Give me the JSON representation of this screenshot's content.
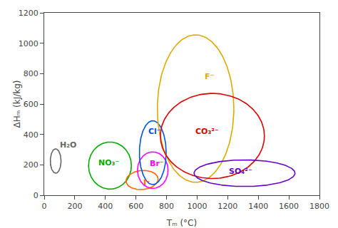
{
  "chart_data": {
    "type": "ellipse",
    "xlabel": "Tₘ (°C)",
    "ylabel": "ΔHₘ (kJ/kg)",
    "xlim": [
      0,
      1800
    ],
    "ylim": [
      0,
      1200
    ],
    "xticks": [
      0,
      200,
      400,
      600,
      800,
      1000,
      1200,
      1400,
      1600,
      1800
    ],
    "yticks": [
      0,
      200,
      400,
      600,
      800,
      1000,
      1200
    ],
    "grid": false,
    "ellipses": [
      {
        "name": "H₂O",
        "cx": 75,
        "cy": 225,
        "width": 70,
        "height": 160,
        "angle": 0,
        "color": "#666666",
        "lx": 95,
        "ly": 330
      },
      {
        "name": "NO₃⁻",
        "cx": 430,
        "cy": 195,
        "width": 280,
        "height": 310,
        "angle": 0,
        "color": "#00aa00",
        "lx": 345,
        "ly": 215
      },
      {
        "name": "I⁻",
        "cx": 640,
        "cy": 100,
        "width": 210,
        "height": 125,
        "angle": 5,
        "color": "#ff6600",
        "lx": 640,
        "ly": 80
      },
      {
        "name": "Br⁻",
        "cx": 710,
        "cy": 165,
        "width": 200,
        "height": 240,
        "angle": 0,
        "color": "#ff00ff",
        "lx": 680,
        "ly": 210
      },
      {
        "name": "Cl⁻",
        "cx": 710,
        "cy": 280,
        "width": 175,
        "height": 420,
        "angle": 0,
        "color": "#0055dd",
        "lx": 670,
        "ly": 420
      },
      {
        "name": "F⁻",
        "cx": 990,
        "cy": 570,
        "width": 500,
        "height": 970,
        "angle": 0,
        "color": "#ddaa00",
        "lx": 1040,
        "ly": 780
      },
      {
        "name": "CO₃²⁻",
        "cx": 1100,
        "cy": 390,
        "width": 680,
        "height": 560,
        "angle": 0,
        "color": "#dd0000",
        "lx": 980,
        "ly": 420
      },
      {
        "name": "SO₄²⁻",
        "cx": 1310,
        "cy": 145,
        "width": 660,
        "height": 175,
        "angle": 0,
        "color": "#6600cc",
        "lx": 1200,
        "ly": 155
      }
    ]
  }
}
